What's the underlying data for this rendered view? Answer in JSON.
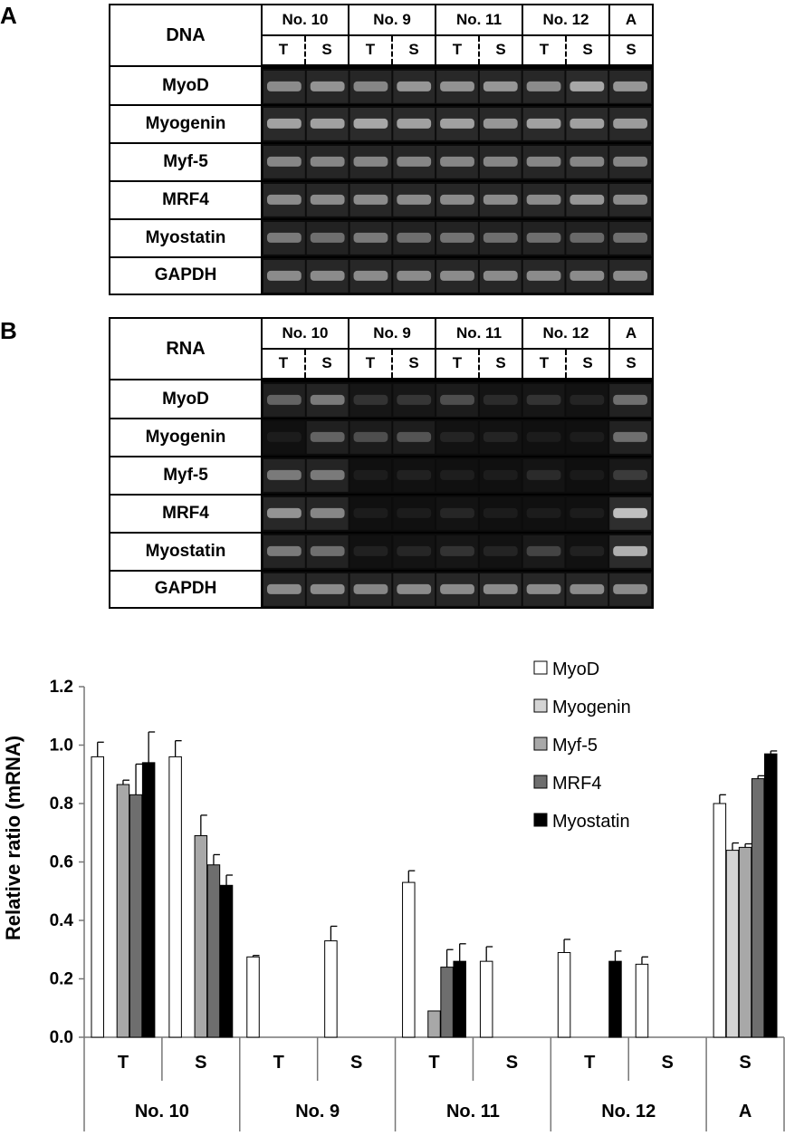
{
  "panel_a": {
    "letter": "A",
    "corner_label": "DNA",
    "samples": [
      {
        "name": "No. 10",
        "lanes": [
          "T",
          "S"
        ]
      },
      {
        "name": "No. 9",
        "lanes": [
          "T",
          "S"
        ]
      },
      {
        "name": "No. 11",
        "lanes": [
          "T",
          "S"
        ]
      },
      {
        "name": "No. 12",
        "lanes": [
          "T",
          "S"
        ]
      },
      {
        "name": "A",
        "lanes": [
          "S"
        ]
      }
    ],
    "genes": [
      "MyoD",
      "Myogenin",
      "Myf-5",
      "MRF4",
      "Myostatin",
      "GAPDH"
    ],
    "band_intensity": [
      [
        0.62,
        0.65,
        0.6,
        0.66,
        0.64,
        0.66,
        0.62,
        0.72,
        0.66
      ],
      [
        0.7,
        0.7,
        0.72,
        0.7,
        0.7,
        0.66,
        0.7,
        0.7,
        0.68
      ],
      [
        0.6,
        0.6,
        0.6,
        0.6,
        0.6,
        0.6,
        0.6,
        0.6,
        0.6
      ],
      [
        0.62,
        0.62,
        0.62,
        0.62,
        0.62,
        0.62,
        0.62,
        0.66,
        0.62
      ],
      [
        0.55,
        0.5,
        0.55,
        0.5,
        0.52,
        0.5,
        0.5,
        0.48,
        0.5
      ],
      [
        0.62,
        0.62,
        0.62,
        0.62,
        0.62,
        0.62,
        0.62,
        0.62,
        0.62
      ]
    ]
  },
  "panel_b": {
    "letter": "B",
    "corner_label": "RNA",
    "samples": [
      {
        "name": "No. 10",
        "lanes": [
          "T",
          "S"
        ]
      },
      {
        "name": "No. 9",
        "lanes": [
          "T",
          "S"
        ]
      },
      {
        "name": "No. 11",
        "lanes": [
          "T",
          "S"
        ]
      },
      {
        "name": "No. 12",
        "lanes": [
          "T",
          "S"
        ]
      },
      {
        "name": "A",
        "lanes": [
          "S"
        ]
      }
    ],
    "genes": [
      "MyoD",
      "Myogenin",
      "Myf-5",
      "MRF4",
      "Myostatin",
      "GAPDH"
    ],
    "band_intensity": [
      [
        0.45,
        0.55,
        0.2,
        0.22,
        0.35,
        0.15,
        0.2,
        0.1,
        0.5
      ],
      [
        0.05,
        0.45,
        0.35,
        0.38,
        0.1,
        0.1,
        0.05,
        0.05,
        0.5
      ],
      [
        0.55,
        0.55,
        0.05,
        0.08,
        0.06,
        0.05,
        0.15,
        0.03,
        0.25
      ],
      [
        0.65,
        0.6,
        0.05,
        0.05,
        0.12,
        0.05,
        0.05,
        0.05,
        0.8
      ],
      [
        0.55,
        0.5,
        0.08,
        0.12,
        0.2,
        0.1,
        0.3,
        0.08,
        0.75
      ],
      [
        0.62,
        0.62,
        0.6,
        0.62,
        0.62,
        0.62,
        0.62,
        0.62,
        0.62
      ]
    ]
  },
  "chart_data": {
    "type": "bar",
    "title": "",
    "xlabel": "",
    "ylabel": "Relative ratio (mRNA)",
    "ylim": [
      0,
      1.2
    ],
    "yticks": [
      "0.0",
      "0.2",
      "0.4",
      "0.6",
      "0.8",
      "1.0",
      "1.2"
    ],
    "grid": false,
    "legend_position": "top-right",
    "groups": [
      {
        "sample": "No. 10",
        "lane": "T"
      },
      {
        "sample": "No. 10",
        "lane": "S"
      },
      {
        "sample": "No. 9",
        "lane": "T"
      },
      {
        "sample": "No. 9",
        "lane": "S"
      },
      {
        "sample": "No. 11",
        "lane": "T"
      },
      {
        "sample": "No. 11",
        "lane": "S"
      },
      {
        "sample": "No. 12",
        "lane": "T"
      },
      {
        "sample": "No. 12",
        "lane": "S"
      },
      {
        "sample": "A",
        "lane": "S"
      }
    ],
    "sample_labels": [
      "No. 10",
      "No. 9",
      "No. 11",
      "No. 12",
      "A"
    ],
    "series": [
      {
        "name": "MyoD",
        "color": "#ffffff",
        "values": [
          0.96,
          0.96,
          0.275,
          0.33,
          0.53,
          0.26,
          0.29,
          0.25,
          0.8
        ],
        "errors": [
          0.05,
          0.055,
          0.005,
          0.05,
          0.04,
          0.05,
          0.045,
          0.025,
          0.03
        ]
      },
      {
        "name": "Myogenin",
        "color": "#d4d4d4",
        "values": [
          0,
          0,
          0,
          0,
          0,
          0,
          0,
          0,
          0.64
        ],
        "errors": [
          0,
          0,
          0,
          0,
          0,
          0,
          0,
          0,
          0.025
        ]
      },
      {
        "name": "Myf-5",
        "color": "#a8a8a8",
        "values": [
          0.865,
          0.69,
          0,
          0,
          0.09,
          0,
          0,
          0,
          0.65
        ],
        "errors": [
          0.015,
          0.07,
          0,
          0,
          0,
          0,
          0,
          0,
          0.012
        ]
      },
      {
        "name": "MRF4",
        "color": "#6e6e6e",
        "values": [
          0.83,
          0.59,
          0,
          0,
          0.24,
          0,
          0,
          0,
          0.885
        ],
        "errors": [
          0.105,
          0.035,
          0,
          0,
          0.06,
          0,
          0,
          0,
          0.01
        ]
      },
      {
        "name": "Myostatin",
        "color": "#000000",
        "values": [
          0.94,
          0.52,
          0,
          0,
          0.26,
          0,
          0.26,
          0,
          0.97
        ],
        "errors": [
          0.105,
          0.035,
          0,
          0,
          0.06,
          0,
          0.035,
          0,
          0.01
        ]
      }
    ]
  }
}
